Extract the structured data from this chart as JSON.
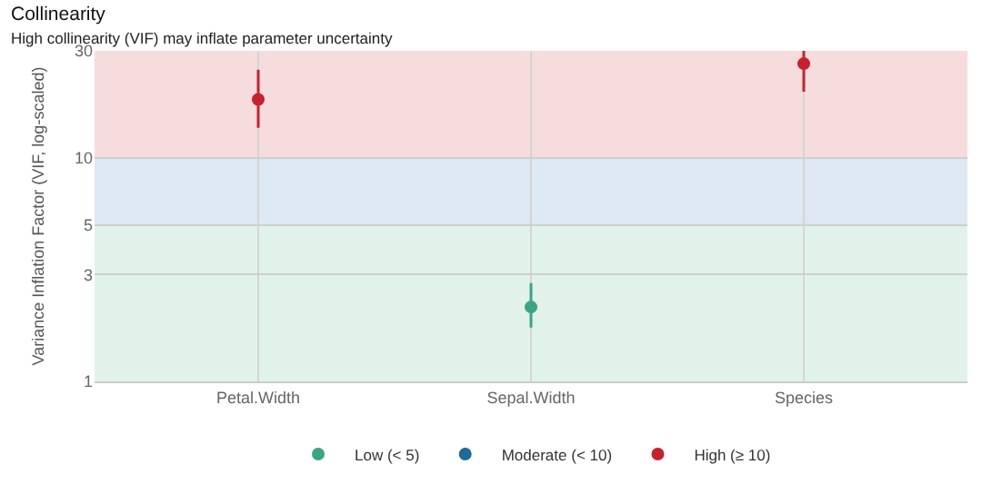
{
  "chart_data": {
    "type": "scatter",
    "title": "Collinearity",
    "subtitle": "High collinearity (VIF) may inflate parameter uncertainty",
    "ylabel": "Variance Inflation Factor (VIF, log-scaled)",
    "categories": [
      "Petal.Width",
      "Sepal.Width",
      "Species"
    ],
    "series": [
      {
        "name": "Low (< 5)",
        "color": "#3aa585",
        "values": [
          null,
          2.15,
          null
        ],
        "errors": [
          null,
          [
            1.74,
            2.75
          ],
          null
        ]
      },
      {
        "name": "Moderate (< 10)",
        "color": "#1f6a96",
        "values": [
          null,
          null,
          null
        ]
      },
      {
        "name": "High (≥ 10)",
        "color": "#c8202f",
        "values": [
          18.2,
          null,
          26.3
        ],
        "errors": [
          [
            13.6,
            24.7
          ],
          null,
          [
            19.7,
            30
          ]
        ]
      }
    ],
    "log": "y",
    "ylim": [
      1,
      30
    ],
    "yticks": [
      1,
      3,
      5,
      10,
      30
    ],
    "bands": [
      {
        "axis": "y",
        "from": 1,
        "to": 5,
        "color": "#e1f2ea"
      },
      {
        "axis": "y",
        "from": 5,
        "to": 10,
        "color": "#dde8f3"
      },
      {
        "axis": "y",
        "from": 10,
        "to": 30,
        "color": "#f6dcdc"
      }
    ],
    "grid": true,
    "legend": "bottom",
    "marker": "circle"
  }
}
